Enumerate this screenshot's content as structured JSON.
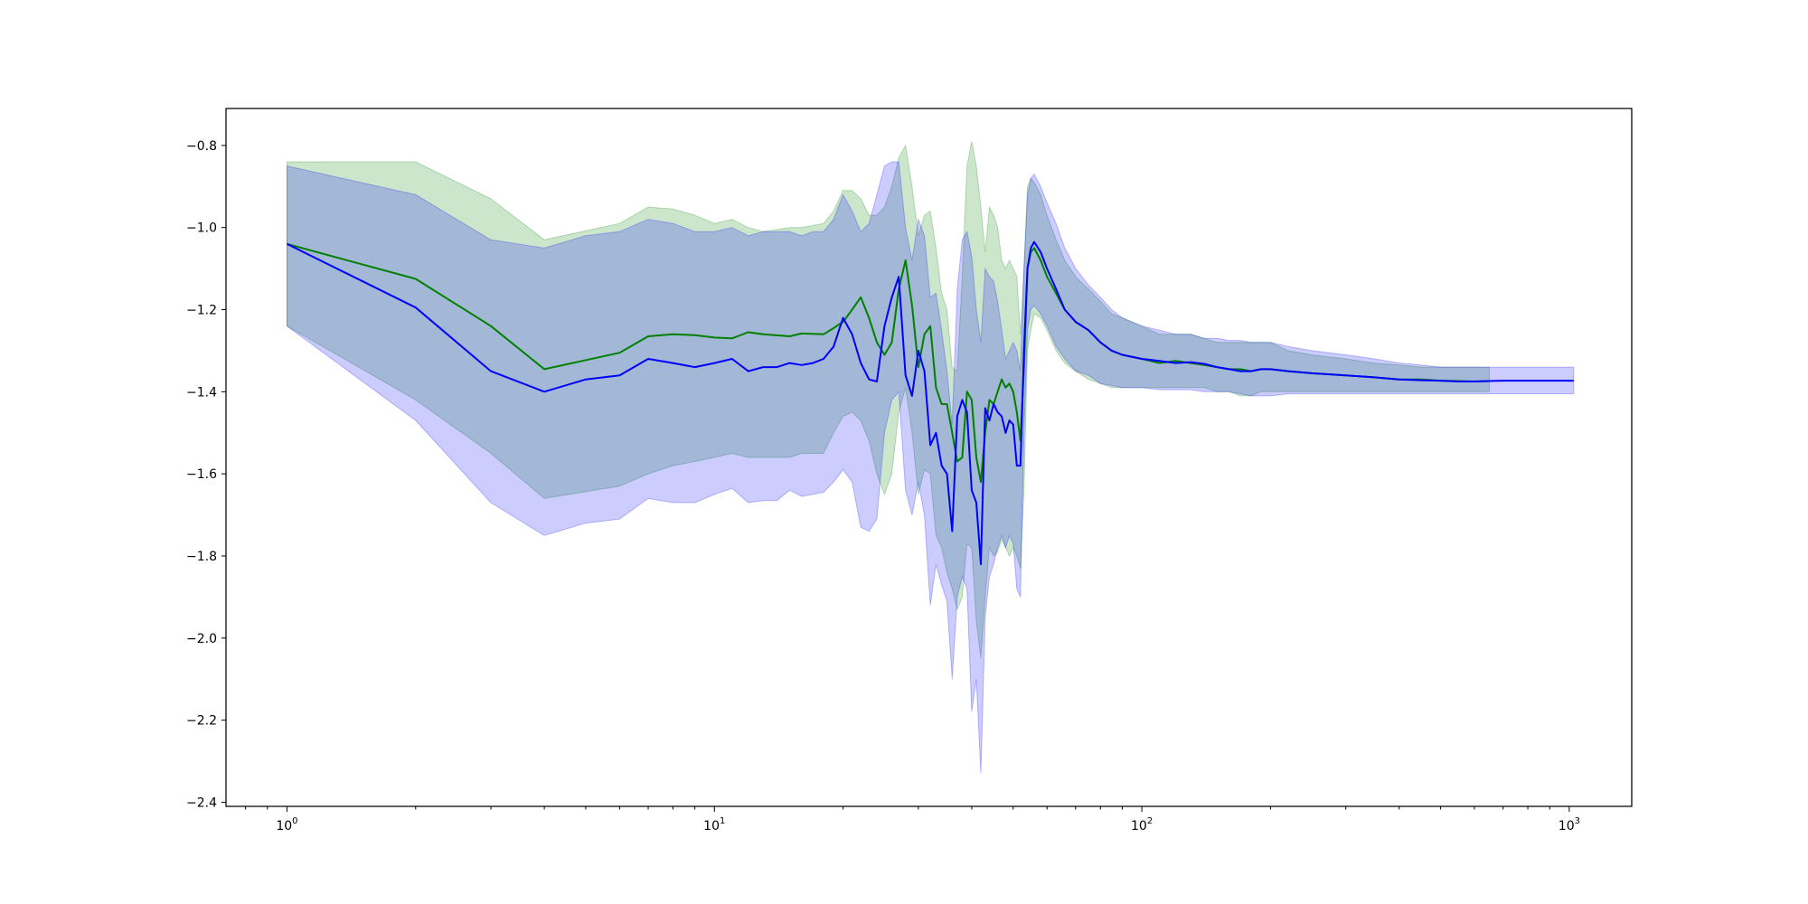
{
  "chart_data": {
    "type": "line",
    "title": "",
    "xlabel": "",
    "ylabel": "",
    "xscale": "log",
    "xlim": [
      0.72,
      1400
    ],
    "ylim": [
      -2.41,
      -0.71
    ],
    "grid": false,
    "x_ticks": [
      {
        "value": 1,
        "base": "10",
        "exp": "0"
      },
      {
        "value": 10,
        "base": "10",
        "exp": "1"
      },
      {
        "value": 100,
        "base": "10",
        "exp": "2"
      },
      {
        "value": 1000,
        "base": "10",
        "exp": "3"
      }
    ],
    "y_ticks": [
      {
        "value": -0.8,
        "label": "−0.8"
      },
      {
        "value": -1.0,
        "label": "−1.0"
      },
      {
        "value": -1.2,
        "label": "−1.2"
      },
      {
        "value": -1.4,
        "label": "−1.4"
      },
      {
        "value": -1.6,
        "label": "−1.6"
      },
      {
        "value": -1.8,
        "label": "−1.8"
      },
      {
        "value": -2.0,
        "label": "−2.0"
      },
      {
        "value": -2.2,
        "label": "−2.2"
      },
      {
        "value": -2.4,
        "label": "−2.4"
      }
    ],
    "series": [
      {
        "color": "#008000",
        "band_color": "#008000",
        "band_opacity": 0.2,
        "x": [
          1,
          2,
          3,
          4,
          6,
          7,
          8,
          9,
          10,
          11,
          12,
          13,
          15,
          16,
          18,
          19,
          20,
          21,
          22,
          23,
          24,
          25,
          26,
          27,
          28,
          29,
          30,
          31,
          32,
          33,
          34,
          35,
          36,
          37,
          38,
          39,
          40,
          41,
          42,
          43,
          44,
          45,
          46,
          47,
          48,
          49,
          50,
          51,
          52,
          53,
          54,
          55,
          56,
          58,
          60,
          63,
          66,
          70,
          75,
          80,
          85,
          90,
          100,
          110,
          120,
          130,
          140,
          150,
          160,
          170,
          180,
          190,
          200,
          220,
          250,
          300,
          350,
          400,
          450,
          500,
          550,
          600,
          650
        ],
        "y": [
          -1.04,
          -1.125,
          -1.24,
          -1.345,
          -1.305,
          -1.265,
          -1.26,
          -1.262,
          -1.268,
          -1.27,
          -1.255,
          -1.26,
          -1.265,
          -1.258,
          -1.26,
          -1.245,
          -1.23,
          -1.2,
          -1.17,
          -1.22,
          -1.28,
          -1.31,
          -1.28,
          -1.15,
          -1.08,
          -1.19,
          -1.34,
          -1.26,
          -1.24,
          -1.39,
          -1.43,
          -1.43,
          -1.5,
          -1.57,
          -1.56,
          -1.4,
          -1.42,
          -1.56,
          -1.62,
          -1.5,
          -1.42,
          -1.43,
          -1.4,
          -1.37,
          -1.39,
          -1.38,
          -1.4,
          -1.45,
          -1.52,
          -1.34,
          -1.1,
          -1.06,
          -1.05,
          -1.08,
          -1.12,
          -1.16,
          -1.2,
          -1.23,
          -1.25,
          -1.28,
          -1.3,
          -1.31,
          -1.32,
          -1.33,
          -1.325,
          -1.33,
          -1.335,
          -1.34,
          -1.345,
          -1.345,
          -1.35,
          -1.345,
          -1.345,
          -1.35,
          -1.355,
          -1.36,
          -1.365,
          -1.37,
          -1.37,
          -1.373,
          -1.374,
          -1.375,
          -1.374
        ],
        "lower": [
          -1.24,
          -1.42,
          -1.55,
          -1.66,
          -1.63,
          -1.6,
          -1.58,
          -1.57,
          -1.56,
          -1.55,
          -1.56,
          -1.56,
          -1.56,
          -1.55,
          -1.55,
          -1.5,
          -1.46,
          -1.45,
          -1.47,
          -1.52,
          -1.6,
          -1.65,
          -1.6,
          -1.45,
          -1.39,
          -1.5,
          -1.65,
          -1.59,
          -1.6,
          -1.75,
          -1.78,
          -1.84,
          -1.88,
          -1.93,
          -1.9,
          -1.77,
          -1.78,
          -1.96,
          -2.05,
          -1.9,
          -1.78,
          -1.8,
          -1.79,
          -1.76,
          -1.78,
          -1.8,
          -1.78,
          -1.8,
          -1.83,
          -1.64,
          -1.3,
          -1.25,
          -1.21,
          -1.22,
          -1.25,
          -1.3,
          -1.33,
          -1.35,
          -1.37,
          -1.38,
          -1.39,
          -1.39,
          -1.39,
          -1.39,
          -1.39,
          -1.39,
          -1.39,
          -1.4,
          -1.4,
          -1.41,
          -1.41,
          -1.4,
          -1.4,
          -1.4,
          -1.4,
          -1.4,
          -1.4,
          -1.4,
          -1.4,
          -1.4,
          -1.4,
          -1.4,
          -1.4
        ],
        "upper": [
          -0.84,
          -0.84,
          -0.93,
          -1.03,
          -0.99,
          -0.95,
          -0.955,
          -0.97,
          -0.99,
          -0.98,
          -1.0,
          -1.01,
          -1.0,
          -1.0,
          -0.99,
          -0.96,
          -0.91,
          -0.91,
          -0.93,
          -0.97,
          -0.97,
          -0.95,
          -0.9,
          -0.83,
          -0.8,
          -0.9,
          -1.02,
          -0.97,
          -0.96,
          -1.05,
          -1.16,
          -1.2,
          -1.34,
          -1.35,
          -1.12,
          -0.85,
          -0.79,
          -0.85,
          -0.95,
          -1.06,
          -0.95,
          -0.97,
          -1.0,
          -1.08,
          -1.1,
          -1.08,
          -1.1,
          -1.12,
          -1.26,
          -1.1,
          -0.9,
          -0.88,
          -0.89,
          -0.92,
          -0.97,
          -1.03,
          -1.08,
          -1.12,
          -1.15,
          -1.18,
          -1.21,
          -1.22,
          -1.24,
          -1.26,
          -1.26,
          -1.26,
          -1.27,
          -1.28,
          -1.28,
          -1.28,
          -1.28,
          -1.28,
          -1.28,
          -1.3,
          -1.31,
          -1.32,
          -1.33,
          -1.335,
          -1.34,
          -1.34,
          -1.34,
          -1.34,
          -1.34
        ]
      },
      {
        "color": "#0000ff",
        "band_color": "#0000ff",
        "band_opacity": 0.2,
        "x": [
          1,
          2,
          3,
          4,
          5,
          6,
          7,
          8,
          9,
          10,
          11,
          12,
          13,
          14,
          15,
          16,
          17,
          18,
          19,
          20,
          21,
          22,
          23,
          24,
          25,
          26,
          27,
          28,
          29,
          30,
          31,
          32,
          33,
          34,
          35,
          36,
          37,
          38,
          39,
          40,
          41,
          42,
          43,
          44,
          45,
          46,
          47,
          48,
          49,
          50,
          51,
          52,
          53,
          54,
          55,
          56,
          58,
          60,
          63,
          66,
          70,
          75,
          80,
          85,
          90,
          100,
          110,
          120,
          130,
          140,
          150,
          160,
          170,
          180,
          190,
          200,
          220,
          250,
          300,
          350,
          400,
          450,
          500,
          550,
          600,
          650,
          700,
          800,
          900,
          1024
        ],
        "y": [
          -1.04,
          -1.195,
          -1.35,
          -1.4,
          -1.37,
          -1.36,
          -1.32,
          -1.33,
          -1.34,
          -1.33,
          -1.32,
          -1.35,
          -1.34,
          -1.34,
          -1.33,
          -1.335,
          -1.33,
          -1.32,
          -1.29,
          -1.22,
          -1.26,
          -1.33,
          -1.37,
          -1.375,
          -1.24,
          -1.17,
          -1.12,
          -1.36,
          -1.41,
          -1.3,
          -1.35,
          -1.53,
          -1.5,
          -1.58,
          -1.6,
          -1.74,
          -1.46,
          -1.42,
          -1.45,
          -1.64,
          -1.67,
          -1.82,
          -1.44,
          -1.47,
          -1.43,
          -1.45,
          -1.46,
          -1.5,
          -1.47,
          -1.48,
          -1.58,
          -1.58,
          -1.3,
          -1.1,
          -1.05,
          -1.035,
          -1.06,
          -1.1,
          -1.15,
          -1.2,
          -1.23,
          -1.25,
          -1.28,
          -1.3,
          -1.31,
          -1.32,
          -1.325,
          -1.33,
          -1.328,
          -1.332,
          -1.34,
          -1.345,
          -1.35,
          -1.35,
          -1.345,
          -1.345,
          -1.35,
          -1.355,
          -1.36,
          -1.365,
          -1.37,
          -1.372,
          -1.373,
          -1.375,
          -1.375,
          -1.374,
          -1.373,
          -1.373,
          -1.373,
          -1.373
        ],
        "lower": [
          -1.24,
          -1.47,
          -1.67,
          -1.75,
          -1.72,
          -1.71,
          -1.66,
          -1.67,
          -1.67,
          -1.65,
          -1.635,
          -1.67,
          -1.665,
          -1.665,
          -1.64,
          -1.655,
          -1.65,
          -1.645,
          -1.62,
          -1.59,
          -1.62,
          -1.73,
          -1.74,
          -1.71,
          -1.5,
          -1.42,
          -1.4,
          -1.64,
          -1.7,
          -1.62,
          -1.7,
          -1.92,
          -1.82,
          -1.87,
          -1.91,
          -2.1,
          -1.9,
          -1.85,
          -1.88,
          -2.18,
          -2.1,
          -2.33,
          -1.95,
          -1.85,
          -1.82,
          -1.78,
          -1.75,
          -1.78,
          -1.75,
          -1.77,
          -1.88,
          -1.9,
          -1.5,
          -1.25,
          -1.2,
          -1.19,
          -1.21,
          -1.24,
          -1.29,
          -1.32,
          -1.35,
          -1.36,
          -1.38,
          -1.385,
          -1.39,
          -1.39,
          -1.395,
          -1.395,
          -1.395,
          -1.4,
          -1.4,
          -1.4,
          -1.405,
          -1.41,
          -1.41,
          -1.41,
          -1.405,
          -1.405,
          -1.405,
          -1.405,
          -1.405,
          -1.405,
          -1.405,
          -1.405,
          -1.405,
          -1.405,
          -1.405,
          -1.405,
          -1.405,
          -1.405
        ],
        "upper": [
          -0.85,
          -0.92,
          -1.03,
          -1.05,
          -1.02,
          -1.01,
          -0.98,
          -0.99,
          -1.01,
          -1.01,
          -1.0,
          -1.02,
          -1.01,
          -1.01,
          -1.01,
          -1.02,
          -1.01,
          -1.01,
          -0.98,
          -0.92,
          -0.96,
          -1.01,
          -0.99,
          -0.92,
          -0.85,
          -0.84,
          -0.84,
          -1.0,
          -1.08,
          -0.98,
          -1.02,
          -1.17,
          -1.16,
          -1.25,
          -1.35,
          -1.48,
          -1.15,
          -1.03,
          -1.01,
          -1.07,
          -1.2,
          -1.28,
          -1.1,
          -1.12,
          -1.13,
          -1.18,
          -1.25,
          -1.32,
          -1.3,
          -1.28,
          -1.3,
          -1.35,
          -1.1,
          -0.92,
          -0.88,
          -0.87,
          -0.9,
          -0.94,
          -0.99,
          -1.05,
          -1.1,
          -1.14,
          -1.17,
          -1.2,
          -1.22,
          -1.24,
          -1.25,
          -1.26,
          -1.26,
          -1.27,
          -1.27,
          -1.275,
          -1.275,
          -1.28,
          -1.28,
          -1.28,
          -1.29,
          -1.3,
          -1.31,
          -1.32,
          -1.33,
          -1.335,
          -1.34,
          -1.34,
          -1.34,
          -1.34,
          -1.34,
          -1.34,
          -1.34,
          -1.34
        ]
      }
    ]
  }
}
